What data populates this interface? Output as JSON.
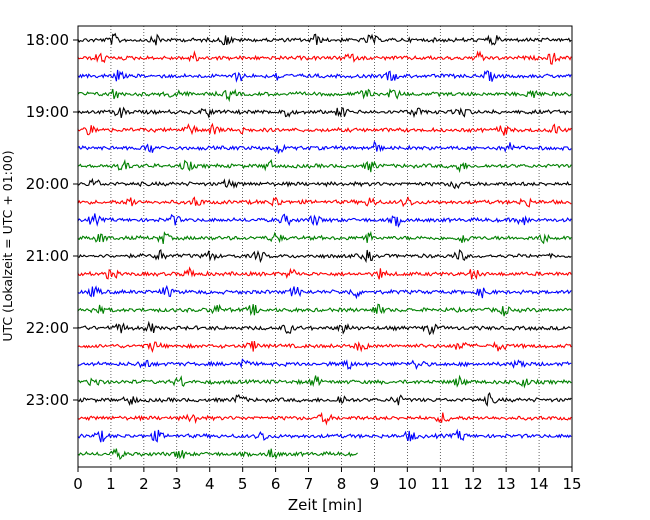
{
  "chart_data": {
    "type": "line",
    "xlabel": "Zeit  [min]",
    "ylabel": "UTC (Lokalzeit = UTC + 01:00)",
    "xlim": [
      0,
      15
    ],
    "x_ticks": [
      0,
      1,
      2,
      3,
      4,
      5,
      6,
      7,
      8,
      9,
      10,
      11,
      12,
      13,
      14,
      15
    ],
    "x_tick_labels": [
      "0",
      "1",
      "2",
      "3",
      "4",
      "5",
      "6",
      "7",
      "8",
      "9",
      "10",
      "11",
      "12",
      "13",
      "14",
      "15"
    ],
    "y_tick_labels": [
      "18:00",
      "19:00",
      "20:00",
      "21:00",
      "22:00",
      "23:00"
    ],
    "grid": "vertical dotted",
    "trace_minutes": 15,
    "trace_colors": [
      "#000000",
      "#ff0000",
      "#0000ff",
      "#008000"
    ],
    "series": [
      {
        "start": "18:00",
        "x_end": 15,
        "color": "#000000",
        "events": [
          1.1,
          2.4,
          4.5,
          7.2,
          8.9,
          12.6
        ]
      },
      {
        "start": "18:15",
        "x_end": 15,
        "color": "#ff0000",
        "events": [
          0.7,
          3.5,
          8.2,
          12.2,
          14.4
        ]
      },
      {
        "start": "18:30",
        "x_end": 15,
        "color": "#0000ff",
        "events": [
          1.2,
          4.9,
          6.1,
          9.5,
          12.5
        ]
      },
      {
        "start": "18:45",
        "x_end": 15,
        "color": "#008000",
        "events": [
          1.1,
          2.9,
          4.6,
          8.7,
          9.6,
          13.8
        ]
      },
      {
        "start": "19:00",
        "x_end": 15,
        "color": "#000000",
        "events": [
          1.3,
          3.9,
          6.3,
          8.0,
          10.3,
          11.7
        ]
      },
      {
        "start": "19:15",
        "x_end": 15,
        "color": "#ff0000",
        "events": [
          0.4,
          3.4,
          4.1,
          4.9,
          12.9,
          14.5
        ]
      },
      {
        "start": "19:30",
        "x_end": 15,
        "color": "#0000ff",
        "events": [
          2.2,
          6.1,
          9.0,
          13.1
        ]
      },
      {
        "start": "19:45",
        "x_end": 15,
        "color": "#008000",
        "events": [
          1.4,
          3.3,
          5.8,
          8.9,
          11.6
        ]
      },
      {
        "start": "20:00",
        "x_end": 15,
        "color": "#000000",
        "events": [
          0.5,
          4.6,
          11.5
        ]
      },
      {
        "start": "20:15",
        "x_end": 15,
        "color": "#ff0000",
        "events": [
          1.6,
          3.6,
          6.0,
          8.9,
          10.0,
          13.6
        ]
      },
      {
        "start": "20:30",
        "x_end": 15,
        "color": "#0000ff",
        "events": [
          0.5,
          2.9,
          6.3,
          7.2,
          9.7,
          13.5
        ]
      },
      {
        "start": "20:45",
        "x_end": 15,
        "color": "#008000",
        "events": [
          0.7,
          2.6,
          6.0,
          8.8,
          11.7,
          14.1
        ]
      },
      {
        "start": "21:00",
        "x_end": 15,
        "color": "#000000",
        "events": [
          2.5,
          4.0,
          5.5,
          8.8,
          11.6
        ]
      },
      {
        "start": "21:15",
        "x_end": 15,
        "color": "#ff0000",
        "events": [
          1.0,
          3.4,
          6.5,
          9.2,
          12.0
        ]
      },
      {
        "start": "21:30",
        "x_end": 15,
        "color": "#0000ff",
        "events": [
          0.5,
          2.7,
          6.6,
          8.4,
          12.3
        ]
      },
      {
        "start": "21:45",
        "x_end": 15,
        "color": "#008000",
        "events": [
          0.6,
          4.2,
          5.3,
          9.1,
          12.9
        ]
      },
      {
        "start": "22:00",
        "x_end": 15,
        "color": "#000000",
        "events": [
          1.3,
          2.2,
          6.4,
          8.1,
          10.7
        ]
      },
      {
        "start": "22:15",
        "x_end": 15,
        "color": "#ff0000",
        "events": [
          2.3,
          5.3,
          8.6,
          11.6,
          12.8
        ]
      },
      {
        "start": "22:30",
        "x_end": 15,
        "color": "#0000ff",
        "events": [
          2.0,
          5.0,
          8.2,
          10.3,
          13.4
        ]
      },
      {
        "start": "22:45",
        "x_end": 15,
        "color": "#008000",
        "events": [
          0.5,
          3.1,
          7.2,
          11.6,
          13.5
        ]
      },
      {
        "start": "23:00",
        "x_end": 15,
        "color": "#000000",
        "events": [
          1.6,
          4.9,
          8.0,
          9.7,
          12.5
        ]
      },
      {
        "start": "23:15",
        "x_end": 15,
        "color": "#ff0000",
        "events": [
          3.5,
          7.5,
          11.1
        ]
      },
      {
        "start": "23:30",
        "x_end": 15,
        "color": "#0000ff",
        "events": [
          0.7,
          2.4,
          5.6,
          10.1,
          11.6
        ]
      },
      {
        "start": "23:45",
        "x_end": 8.5,
        "color": "#008000",
        "events": [
          1.2,
          3.1,
          5.9
        ]
      }
    ]
  }
}
